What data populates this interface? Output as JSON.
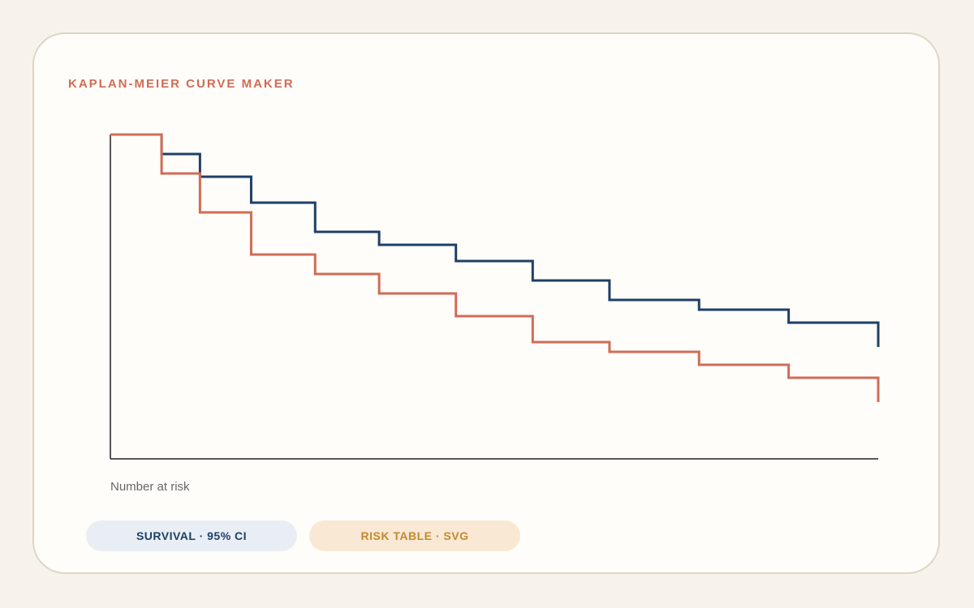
{
  "card": {
    "title": "KAPLAN-MEIER CURVE MAKER"
  },
  "risk_label": "Number at risk",
  "buttons": {
    "survival_label": "SURVIVAL · 95% CI",
    "risk_table_label": "RISK TABLE · SVG"
  },
  "colors": {
    "series_a": "#1e3f66",
    "series_b": "#d06c56",
    "accent_title": "#d06c56"
  },
  "chart_data": {
    "type": "line",
    "step": true,
    "title": "",
    "xlabel": "",
    "ylabel": "",
    "xlim": [
      0,
      12
    ],
    "ylim": [
      0,
      1
    ],
    "grid": false,
    "series": [
      {
        "color": "#1e3f66",
        "x": [
          0,
          0.8,
          1.4,
          2.2,
          3.2,
          4.2,
          5.4,
          6.6,
          7.8,
          9.2,
          10.6,
          12
        ],
        "y": [
          1.0,
          0.94,
          0.87,
          0.79,
          0.7,
          0.66,
          0.61,
          0.55,
          0.49,
          0.46,
          0.42,
          0.38
        ]
      },
      {
        "color": "#d06c56",
        "x": [
          0,
          0.8,
          1.4,
          2.2,
          3.2,
          4.2,
          5.4,
          6.6,
          7.8,
          9.2,
          10.6,
          12
        ],
        "y": [
          1.0,
          0.88,
          0.76,
          0.63,
          0.57,
          0.51,
          0.44,
          0.36,
          0.33,
          0.29,
          0.25,
          0.21
        ]
      }
    ]
  }
}
